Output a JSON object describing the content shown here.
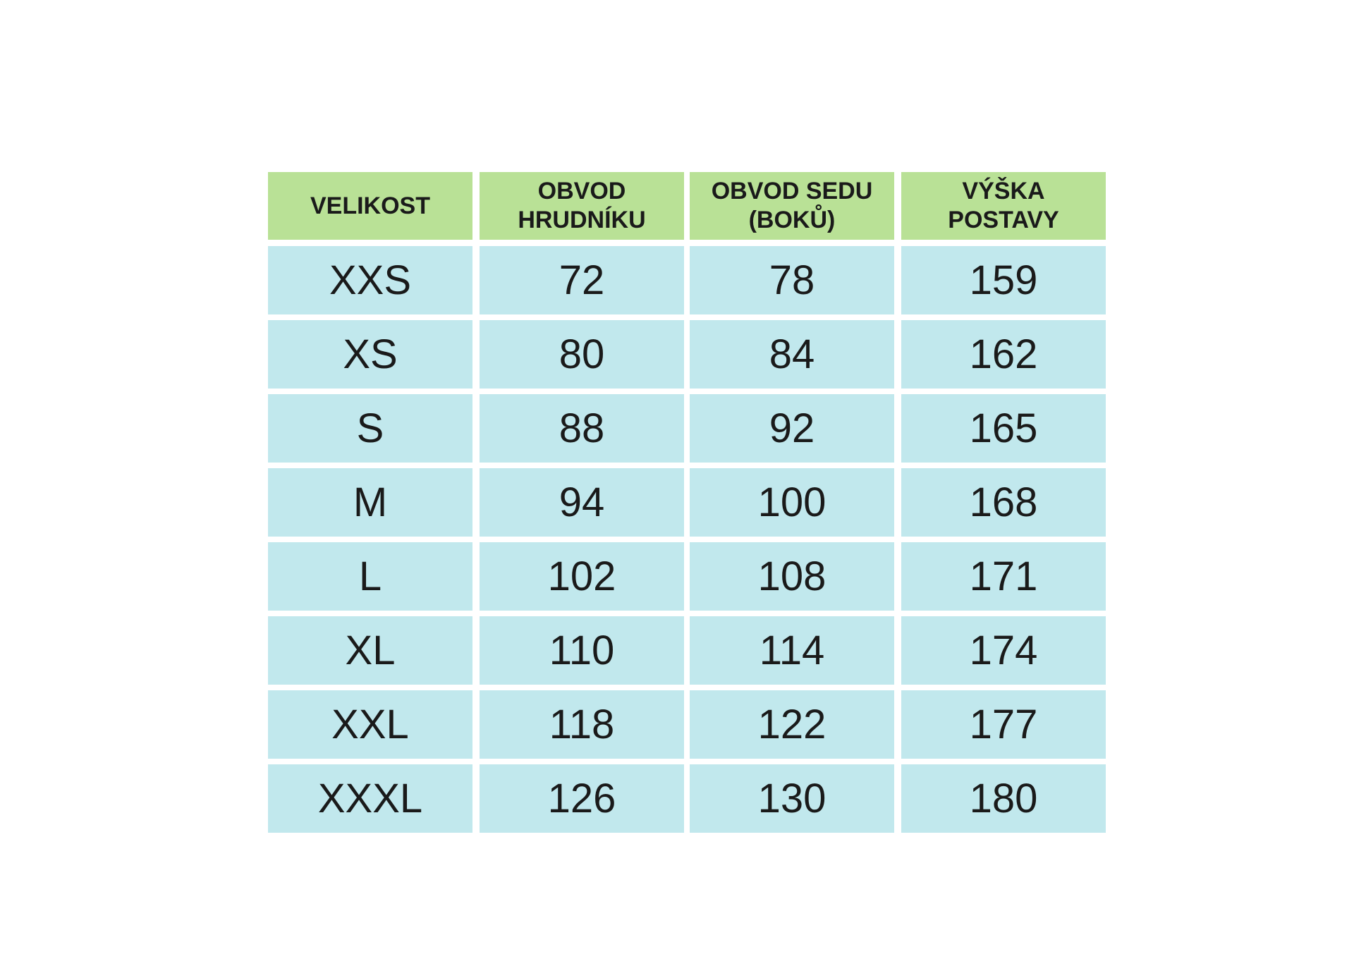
{
  "table": {
    "header": [
      "VELIKOST",
      "OBVOD HRUDNÍKU",
      "OBVOD SEDU (BOKŮ)",
      "VÝŠKA POSTAVY"
    ],
    "rows": [
      [
        "XXS",
        72,
        78,
        159
      ],
      [
        "XS",
        80,
        84,
        162
      ],
      [
        "S",
        88,
        92,
        165
      ],
      [
        "M",
        94,
        100,
        168
      ],
      [
        "L",
        102,
        108,
        171
      ],
      [
        "XL",
        110,
        114,
        174
      ],
      [
        "XXL",
        118,
        122,
        177
      ],
      [
        "XXXL",
        126,
        130,
        180
      ]
    ]
  }
}
